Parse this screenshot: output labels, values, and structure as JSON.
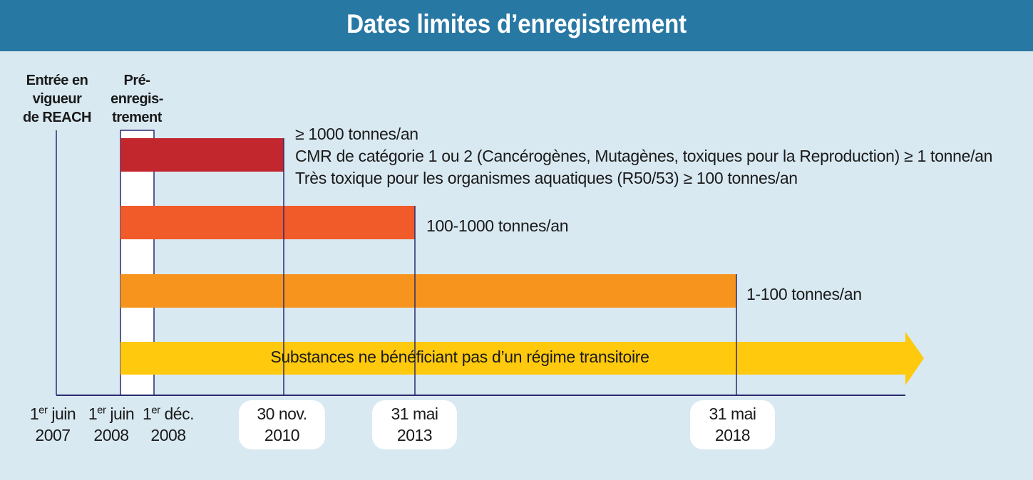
{
  "title": "Dates limites d’enregistrement",
  "top_labels": {
    "entry_into_force": [
      "Entrée en",
      "vigueur",
      "de REACH"
    ],
    "pre_registration": [
      "Pré-",
      "enregis-",
      "trement"
    ]
  },
  "dates": [
    {
      "day": "1",
      "sup": "er",
      "month": "juin",
      "year": "2007"
    },
    {
      "day": "1",
      "sup": "er",
      "month": "juin",
      "year": "2008"
    },
    {
      "day": "1",
      "sup": "er",
      "month": "déc.",
      "year": "2008"
    }
  ],
  "deadlines": [
    {
      "line1": "30 nov.",
      "line2": "2010"
    },
    {
      "line1": "31 mai",
      "line2": "2013"
    },
    {
      "line1": "31 mai",
      "line2": "2018"
    }
  ],
  "bars": [
    {
      "color": "#c1272d",
      "lines": [
        "≥ 1000 tonnes/an",
        "CMR de catégorie 1 ou 2 (Cancérogènes, Mutagènes, toxiques pour la Reproduction) ≥ 1 tonne/an",
        "Très toxique pour les organismes aquatiques (R50/53) ≥ 100 tonnes/an"
      ]
    },
    {
      "color": "#f15a29",
      "lines": [
        "100-1000 tonnes/an"
      ]
    },
    {
      "color": "#f7941d",
      "lines": [
        "1-100 tonnes/an"
      ]
    }
  ],
  "non_phase_in": {
    "color": "#ffc90e",
    "label": "Substances ne bénéficiant pas d’un régime transitoire"
  },
  "colors": {
    "header": "#2878a4",
    "background": "#d9e9f2",
    "axis": "#2b2b6e"
  }
}
